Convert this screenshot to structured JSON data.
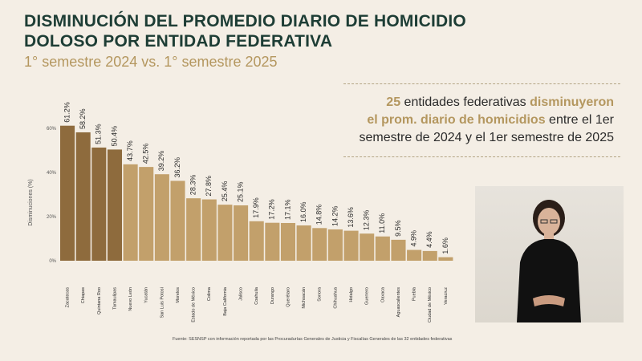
{
  "header": {
    "title_line1": "DISMINUCIÓN DEL PROMEDIO DIARIO DE HOMICIDIO",
    "title_line2": "DOLOSO POR ENTIDAD FEDERATIVA",
    "subtitle": "1° semestre 2024 vs. 1° semestre 2025"
  },
  "callout": {
    "num": "25",
    "t1": " entidades federativas ",
    "hl1": "disminuyeron",
    "hl2": "el prom. diario de homicidios",
    "t2": " entre el 1er",
    "t3": "semestre de 2024 y el 1er semestre de 2025"
  },
  "source": "Fuente: SESNSP con información reportada por las Procuradurías Generales de Justicia y Fiscalías Generales de las 32 entidades federativas",
  "colors": {
    "bar": "#c2a06b",
    "bar_dark": "#8e6b3d",
    "title": "#1d3d35",
    "accent": "#b4975f",
    "background": "#f4eee5"
  },
  "chart_data": {
    "type": "bar",
    "title": "DISMINUCIÓN DEL PROMEDIO DIARIO DE HOMICIDIO DOLOSO POR ENTIDAD FEDERATIVA",
    "ylabel": "Disminuciones (%)",
    "ylim": [
      0,
      60
    ],
    "yticks": [
      "0%",
      "20%",
      "40%",
      "60%"
    ],
    "ytick_values": [
      0,
      20,
      40,
      60
    ],
    "grid": false,
    "categories": [
      "Zacatecas",
      "Chiapas",
      "Quintana Roo",
      "Tamaulipas",
      "Nuevo León",
      "Yucatán",
      "San Luis Potosí",
      "Morelos",
      "Estado de México",
      "Colima",
      "Baja California",
      "Jalisco",
      "Coahuila",
      "Durango",
      "Querétaro",
      "Michoacán",
      "Sonora",
      "Chihuahua",
      "Hidalgo",
      "Guerrero",
      "Oaxaca",
      "Aguascalientes",
      "Puebla",
      "Ciudad de México",
      "Veracruz"
    ],
    "values": [
      61.2,
      58.2,
      51.3,
      50.4,
      43.7,
      42.5,
      39.2,
      36.2,
      28.3,
      27.8,
      25.4,
      25.1,
      17.9,
      17.2,
      17.1,
      16.0,
      14.8,
      14.2,
      13.6,
      12.3,
      11.0,
      9.5,
      4.9,
      4.4,
      1.6
    ],
    "labels": [
      "61.2%",
      "58.2%",
      "51.3%",
      "50.4%",
      "43.7%",
      "42.5%",
      "39.2%",
      "36.2%",
      "28.3%",
      "27.8%",
      "25.4%",
      "25.1%",
      "17.9%",
      "17.2%",
      "17.1%",
      "16.0%",
      "14.8%",
      "14.2%",
      "13.6%",
      "12.3%",
      "11.0%",
      "9.5%",
      "4.9%",
      "4.4%",
      "1.6%"
    ]
  }
}
